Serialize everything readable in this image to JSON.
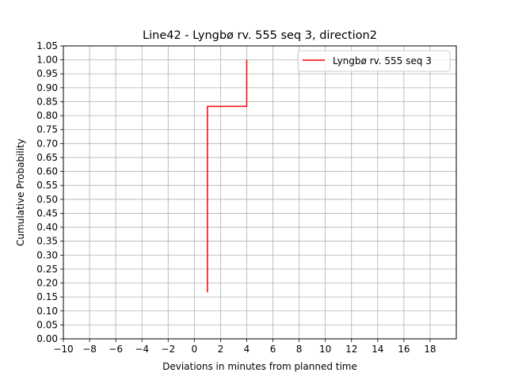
{
  "chart_data": {
    "type": "line",
    "title": "Line42 - Lyngbø rv. 555 seq 3, direction2",
    "xlabel": "Deviations in minutes from planned time",
    "ylabel": "Cumulative Probability",
    "xlim": [
      -10,
      20
    ],
    "ylim": [
      0,
      1.05
    ],
    "xticks": [
      -10,
      -8,
      -6,
      -4,
      -2,
      0,
      2,
      4,
      6,
      8,
      10,
      12,
      14,
      16,
      18
    ],
    "yticks": [
      0.0,
      0.05,
      0.1,
      0.15,
      0.2,
      0.25,
      0.3,
      0.35,
      0.4,
      0.45,
      0.5,
      0.55,
      0.6,
      0.65,
      0.7,
      0.75,
      0.8,
      0.85,
      0.9,
      0.95,
      1.0,
      1.05
    ],
    "grid": true,
    "legend_position": "top-right",
    "series": [
      {
        "name": "Lyngbø rv. 555 seq 3",
        "color": "#ff0000",
        "x": [
          1,
          1,
          4,
          4
        ],
        "y": [
          0.1667,
          0.8333,
          0.8333,
          1.0
        ]
      }
    ]
  }
}
